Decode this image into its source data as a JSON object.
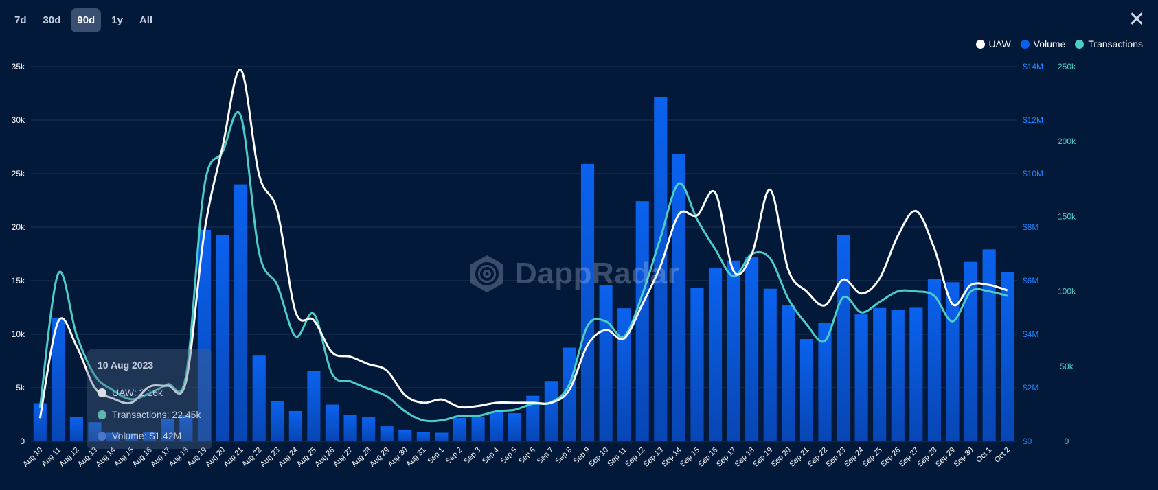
{
  "range_tabs": [
    {
      "label": "7d",
      "active": false
    },
    {
      "label": "30d",
      "active": false
    },
    {
      "label": "90d",
      "active": true
    },
    {
      "label": "1y",
      "active": false
    },
    {
      "label": "All",
      "active": false
    }
  ],
  "close_label": "✕",
  "watermark": "DappRadar",
  "colors": {
    "uaw": "#ffffff",
    "volume": "#0a60e8",
    "transactions": "#4ecdc4",
    "background": "#03193a"
  },
  "tooltip": {
    "date": "10 Aug 2023",
    "uaw": "UAW: 2.16k",
    "transactions": "Transactions: 22.45k",
    "volume": "Volume: $1.42M"
  },
  "chart_data": {
    "type": "bar+line",
    "x": [
      "Aug 10",
      "Aug 11",
      "Aug 12",
      "Aug 13",
      "Aug 14",
      "Aug 15",
      "Aug 16",
      "Aug 17",
      "Aug 18",
      "Aug 19",
      "Aug 20",
      "Aug 21",
      "Aug 22",
      "Aug 23",
      "Aug 24",
      "Aug 25",
      "Aug 26",
      "Aug 27",
      "Aug 28",
      "Aug 29",
      "Aug 30",
      "Aug 31",
      "Sep 1",
      "Sep 2",
      "Sep 3",
      "Sep 4",
      "Sep 5",
      "Sep 6",
      "Sep 7",
      "Sep 8",
      "Sep 9",
      "Sep 10",
      "Sep 11",
      "Sep 12",
      "Sep 13",
      "Sep 14",
      "Sep 15",
      "Sep 16",
      "Sep 17",
      "Sep 18",
      "Sep 19",
      "Sep 20",
      "Sep 21",
      "Sep 22",
      "Sep 23",
      "Sep 24",
      "Sep 25",
      "Sep 26",
      "Sep 27",
      "Sep 28",
      "Sep 29",
      "Sep 30",
      "Oct 1",
      "Oct 2"
    ],
    "legend": [
      "UAW",
      "Volume",
      "Transactions"
    ],
    "legend_position": "top-right",
    "series": [
      {
        "name": "UAW",
        "type": "line",
        "axis": "left",
        "color": "#ffffff",
        "values": [
          2.16,
          11.2,
          8.9,
          5.0,
          4.0,
          3.6,
          5.1,
          5.2,
          5.6,
          19.5,
          27.5,
          34.7,
          24.9,
          21.5,
          12.1,
          11.3,
          8.3,
          7.9,
          7.2,
          6.6,
          4.3,
          3.6,
          3.9,
          3.2,
          3.3,
          3.6,
          3.6,
          3.6,
          3.6,
          4.8,
          9.0,
          10.4,
          9.6,
          12.8,
          16.4,
          21.2,
          21.1,
          23.2,
          15.9,
          17.5,
          23.5,
          16.0,
          14.0,
          12.7,
          15.1,
          13.8,
          15.2,
          19.2,
          21.5,
          18.0,
          12.8,
          14.6,
          14.6,
          14.1
        ]
      },
      {
        "name": "Volume",
        "type": "bar",
        "axis": "right",
        "color": "#0a60e8",
        "values": [
          1.42,
          4.6,
          0.92,
          0.71,
          0.32,
          0.3,
          0.36,
          0.85,
          1.0,
          7.9,
          7.7,
          9.6,
          3.2,
          1.5,
          1.13,
          2.64,
          1.37,
          0.98,
          0.9,
          0.56,
          0.42,
          0.34,
          0.32,
          0.87,
          0.92,
          1.08,
          1.05,
          1.7,
          2.25,
          3.5,
          10.36,
          5.82,
          4.97,
          8.97,
          12.87,
          10.73,
          5.74,
          6.46,
          6.75,
          6.87,
          5.7,
          5.1,
          3.82,
          4.43,
          7.7,
          4.74,
          4.98,
          4.91,
          4.99,
          6.06,
          5.94,
          6.7,
          7.17,
          6.32
        ]
      },
      {
        "name": "Transactions",
        "type": "line",
        "axis": "right2",
        "color": "#4ecdc4",
        "values": [
          22.45,
          112,
          71,
          44,
          34,
          28,
          32,
          38,
          44,
          170,
          193,
          217,
          126,
          104,
          70,
          85,
          45,
          40,
          35,
          30,
          20,
          14,
          14,
          17,
          17,
          20,
          21,
          25,
          26,
          38,
          77,
          80,
          70,
          98,
          136,
          172,
          148,
          128,
          110,
          125,
          122,
          95,
          78,
          67,
          96,
          86,
          93,
          100,
          100,
          97,
          80,
          100,
          100,
          97
        ]
      }
    ],
    "ylim_left": [
      0,
      35
    ],
    "yticks_left": [
      "0",
      "5k",
      "10k",
      "15k",
      "20k",
      "25k",
      "30k",
      "35k"
    ],
    "ylim_right": [
      0,
      14
    ],
    "yticks_right": [
      "$0",
      "$2M",
      "$4M",
      "$6M",
      "$8M",
      "$10M",
      "$12M",
      "$14M"
    ],
    "ylim_right2": [
      0,
      250
    ],
    "yticks_right2": [
      "0",
      "50k",
      "100k",
      "150k",
      "200k",
      "250k"
    ],
    "grid": true
  }
}
